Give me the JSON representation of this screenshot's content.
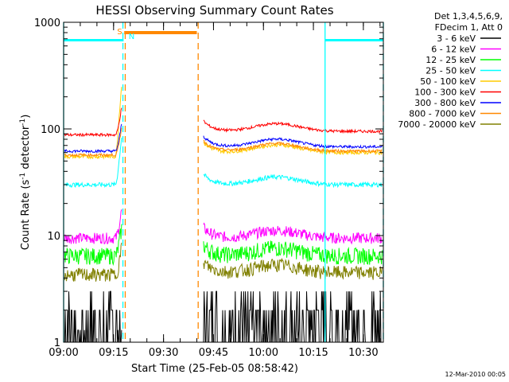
{
  "chart_data": {
    "type": "line",
    "title": "HESSI Observing Summary Count Rates",
    "xlabel": "Start Time (25-Feb-05 08:58:42)",
    "ylabel_main": "Count Rate (s",
    "ylabel_sup1": "-1",
    "ylabel_mid": " detector",
    "ylabel_sup2": "-1",
    "ylabel_end": ")",
    "yscale": "log",
    "ylim": [
      1,
      1000
    ],
    "xlim_minutes": [
      0,
      96
    ],
    "x_ticks": [
      {
        "label": "09:00",
        "min": 0
      },
      {
        "label": "09:15",
        "min": 15
      },
      {
        "label": "09:30",
        "min": 30
      },
      {
        "label": "09:45",
        "min": 45
      },
      {
        "label": "10:00",
        "min": 60
      },
      {
        "label": "10:15",
        "min": 75
      },
      {
        "label": "10:30",
        "min": 90
      }
    ],
    "y_ticks": [
      {
        "label": "1",
        "v": 1
      },
      {
        "label": "10",
        "v": 10
      },
      {
        "label": "100",
        "v": 100
      },
      {
        "label": "1000",
        "v": 1000
      }
    ],
    "legend_header": [
      "Det 1,3,4,5,6,9,",
      "FDecim 1, Att 0"
    ],
    "series": [
      {
        "name": "3 - 6 keV",
        "color": "#000000",
        "pre": 1.6,
        "post": 1.6,
        "noise": 0.9,
        "segments": "both"
      },
      {
        "name": "6 - 12 keV",
        "color": "#ff00ff",
        "pre": 9.5,
        "post": 9.5,
        "noise": 0.12,
        "segments": "both"
      },
      {
        "name": "12 - 25 keV",
        "color": "#00ff00",
        "pre": 6.5,
        "post": 6.5,
        "noise": 0.18,
        "segments": "both"
      },
      {
        "name": "25 - 50 keV",
        "color": "#00ffff",
        "pre": 30,
        "post": 30,
        "noise": 0.05,
        "segments": "both"
      },
      {
        "name": "50 - 100 keV",
        "color": "#ffcc00",
        "pre": 55,
        "post": 60,
        "noise": 0.04,
        "segments": "both"
      },
      {
        "name": "100 - 300 keV",
        "color": "#ff0000",
        "pre": 88,
        "post": 95,
        "noise": 0.03,
        "segments": "both"
      },
      {
        "name": "300 - 800 keV",
        "color": "#0000ff",
        "pre": 62,
        "post": 68,
        "noise": 0.03,
        "segments": "both"
      },
      {
        "name": "800 - 7000 keV",
        "color": "#ff8800",
        "pre": 57,
        "post": 62,
        "noise": 0.03,
        "segments": "both"
      },
      {
        "name": "7000 - 20000 keV",
        "color": "#808000",
        "pre": 4.3,
        "post": 4.5,
        "noise": 0.15,
        "segments": "both"
      }
    ],
    "markers": [
      {
        "label": "S",
        "color": "#ff8800",
        "min": 18.2
      },
      {
        "label": "N",
        "color": "#00ffff",
        "min": 18.8
      }
    ],
    "saa_bar": {
      "start": 18.2,
      "end": 40,
      "value": 800,
      "color": "#ff8800"
    },
    "night_bars": [
      {
        "start": 0,
        "end": 18,
        "value": 680,
        "color": "#00ffff"
      },
      {
        "start": 78.5,
        "end": 96,
        "value": 680,
        "color": "#00ffff"
      }
    ],
    "vlines": [
      {
        "min": 0,
        "color": "#00ffff",
        "style": "solid"
      },
      {
        "min": 17.8,
        "color": "#00ffff",
        "style": "dashed"
      },
      {
        "min": 18.5,
        "color": "#ff8800",
        "style": "dashed"
      },
      {
        "min": 40.4,
        "color": "#ff8800",
        "style": "dashed"
      },
      {
        "min": 78.5,
        "color": "#00ffff",
        "style": "solid"
      },
      {
        "min": 96,
        "color": "#00ffff",
        "style": "dashed"
      }
    ],
    "gap": {
      "start": 18.5,
      "end": 42
    }
  },
  "footer_date": "12-Mar-2010 00:05"
}
